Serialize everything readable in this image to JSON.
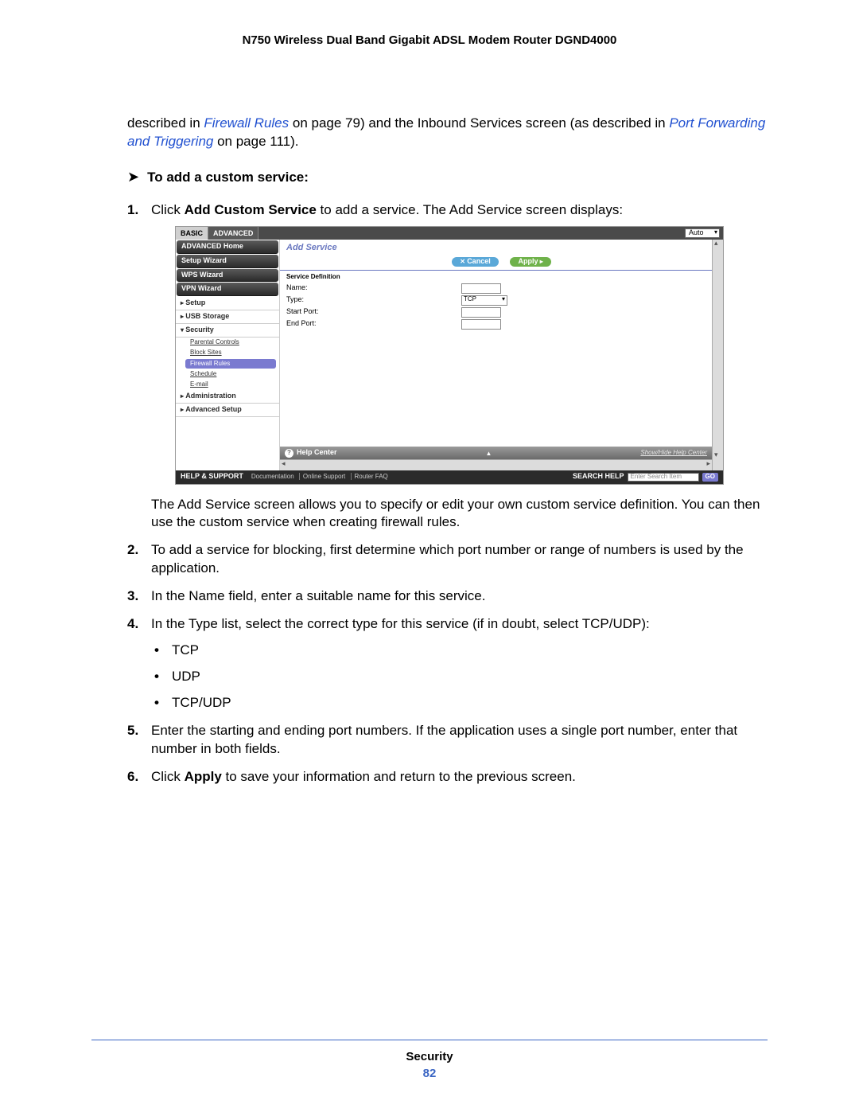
{
  "header": {
    "title": "N750 Wireless Dual Band Gigabit ADSL Modem Router DGND4000"
  },
  "intro": {
    "pre": "described in ",
    "link1": "Firewall Rules",
    "mid1": " on page 79) and the Inbound Services screen (as described in ",
    "link2": "Port Forwarding and Triggering",
    "mid2": " on page 111)."
  },
  "procedure": {
    "arrow": "➤",
    "heading": "To add a custom service:"
  },
  "steps": {
    "s1a": "Click ",
    "s1b": "Add Custom Service",
    "s1c": " to add a service. The Add Service screen displays:",
    "s1_post": "The Add Service screen allows you to specify or edit your own custom service definition. You can then use the custom service when creating firewall rules.",
    "s2": "To add a service for blocking, first determine which port number or range of numbers is used by the application.",
    "s3": "In the Name field, enter a suitable name for this service.",
    "s4": "In the Type list, select the correct type for this service (if in doubt, select TCP/UDP):",
    "s4_opts": [
      "TCP",
      "UDP",
      "TCP/UDP"
    ],
    "s5": "Enter the starting and ending port numbers. If the application uses a single port number, enter that number in both fields.",
    "s6a": "Click ",
    "s6b": "Apply",
    "s6c": " to save your information and return to the previous screen."
  },
  "shot": {
    "tabs": {
      "basic": "BASIC",
      "advanced": "ADVANCED"
    },
    "auto": "Auto",
    "sidebar": {
      "adv_home": "ADVANCED Home",
      "setup_wiz": "Setup Wizard",
      "wps_wiz": "WPS Wizard",
      "vpn_wiz": "VPN Wizard",
      "setup": "Setup",
      "usb": "USB Storage",
      "security": "Security",
      "sub": {
        "parental": "Parental Controls",
        "block": "Block Sites",
        "firewall": "Firewall Rules",
        "schedule": "Schedule",
        "email": "E-mail"
      },
      "admin": "Administration",
      "advsetup": "Advanced Setup"
    },
    "pane": {
      "title": "Add Service",
      "cancel": "Cancel",
      "apply": "Apply",
      "section": "Service Definition",
      "name_lbl": "Name:",
      "type_lbl": "Type:",
      "type_val": "TCP",
      "start_lbl": "Start Port:",
      "end_lbl": "End Port:"
    },
    "helpbar": {
      "title": "Help Center",
      "link": "Show/Hide Help Center"
    },
    "support": {
      "label": "HELP & SUPPORT",
      "links": [
        "Documentation",
        "Online Support",
        "Router FAQ"
      ],
      "search_lbl": "SEARCH HELP",
      "placeholder": "Enter Search Item",
      "go": "GO"
    }
  },
  "footer": {
    "section": "Security",
    "page": "82"
  }
}
